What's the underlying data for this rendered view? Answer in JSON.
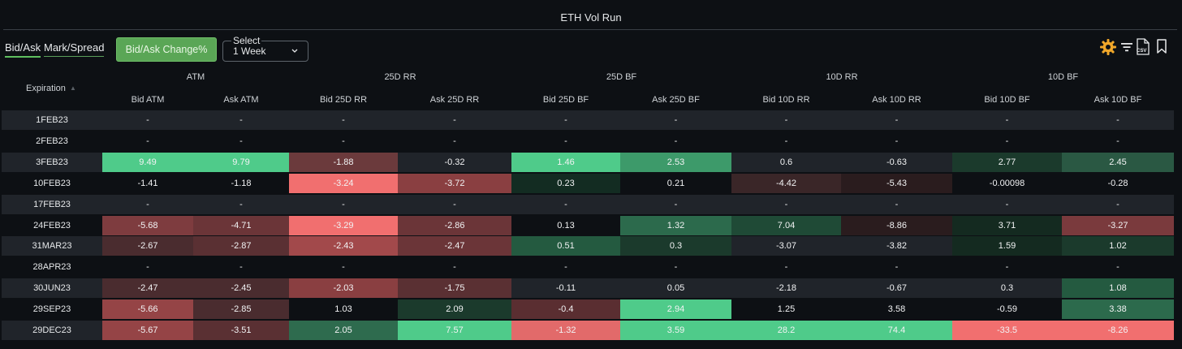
{
  "header": {
    "title": "ETH Vol Run"
  },
  "tabs": [
    {
      "label": "Bid/Ask",
      "active": true
    },
    {
      "label": "Mark/Spread",
      "active": false
    }
  ],
  "toolbar": {
    "change_button": "Bid/Ask Change%",
    "select": {
      "label": "Select",
      "value": "1 Week"
    },
    "icons": [
      "gear-icon",
      "filter-icon",
      "csv-export-icon",
      "bookmark-icon"
    ],
    "csv_label": "CSV"
  },
  "table": {
    "expiration_header": "Expiration",
    "groups": [
      "ATM",
      "25D RR",
      "25D BF",
      "10D RR",
      "10D BF"
    ],
    "columns": [
      "Bid ATM",
      "Ask ATM",
      "Bid 25D RR",
      "Ask 25D RR",
      "Bid 25D BF",
      "Ask 25D BF",
      "Bid 10D RR",
      "Ask 10D RR",
      "Bid 10D BF",
      "Ask 10D BF"
    ],
    "rows": [
      {
        "expiration": "1FEB23",
        "values": [
          "-",
          "-",
          "-",
          "-",
          "-",
          "-",
          "-",
          "-",
          "-",
          "-"
        ],
        "colors": [
          "",
          "",
          "",
          "",
          "",
          "",
          "",
          "",
          "",
          ""
        ]
      },
      {
        "expiration": "2FEB23",
        "values": [
          "-",
          "-",
          "-",
          "-",
          "-",
          "-",
          "-",
          "-",
          "-",
          "-"
        ],
        "colors": [
          "",
          "",
          "",
          "",
          "",
          "",
          "",
          "",
          "",
          ""
        ]
      },
      {
        "expiration": "3FEB23",
        "values": [
          "9.49",
          "9.79",
          "-1.88",
          "-0.32",
          "1.46",
          "2.53",
          "0.6",
          "-0.63",
          "2.77",
          "2.45"
        ],
        "colors": [
          "#4fcb8a",
          "#4fcb8a",
          "#6b3a3c",
          "",
          "#4fcb8a",
          "#3d9a6a",
          "",
          "",
          "#1b3a2c",
          "#2a5843"
        ]
      },
      {
        "expiration": "10FEB23",
        "values": [
          "-1.41",
          "-1.18",
          "-3.24",
          "-3.72",
          "0.23",
          "0.21",
          "-4.42",
          "-5.43",
          "-0.00098",
          "-0.28"
        ],
        "colors": [
          "",
          "",
          "#f16f6f",
          "#8a3f41",
          "#132c22",
          "",
          "#3a2628",
          "#2a1c1e",
          "",
          ""
        ]
      },
      {
        "expiration": "17FEB23",
        "values": [
          "-",
          "-",
          "-",
          "-",
          "-",
          "-",
          "-",
          "-",
          "-",
          "-"
        ],
        "colors": [
          "",
          "",
          "",
          "",
          "",
          "",
          "",
          "",
          "",
          ""
        ]
      },
      {
        "expiration": "24FEB23",
        "values": [
          "-5.68",
          "-4.71",
          "-3.29",
          "-2.86",
          "0.13",
          "1.32",
          "7.04",
          "-8.86",
          "3.71",
          "-3.27"
        ],
        "colors": [
          "#7e3c3f",
          "#6b3538",
          "#f16f6f",
          "#6b3538",
          "",
          "#2c6a4c",
          "#1f4a36",
          "#2a1c1e",
          "#142a20",
          "#7a3a3d"
        ]
      },
      {
        "expiration": "31MAR23",
        "values": [
          "-2.67",
          "-2.87",
          "-2.43",
          "-2.47",
          "0.51",
          "0.3",
          "-3.07",
          "-3.82",
          "1.59",
          "1.02"
        ],
        "colors": [
          "#4a2c2f",
          "#5a3033",
          "#a2494b",
          "#6b3538",
          "#245a40",
          "#1b3a2c",
          "",
          "",
          "#142a20",
          "#1b3a2c"
        ]
      },
      {
        "expiration": "28APR23",
        "values": [
          "-",
          "-",
          "-",
          "-",
          "-",
          "-",
          "-",
          "-",
          "-",
          "-"
        ],
        "colors": [
          "",
          "",
          "",
          "",
          "",
          "",
          "",
          "",
          "",
          ""
        ]
      },
      {
        "expiration": "30JUN23",
        "values": [
          "-2.47",
          "-2.45",
          "-2.03",
          "-1.75",
          "-0.11",
          "0.05",
          "-2.18",
          "-0.67",
          "0.3",
          "1.08"
        ],
        "colors": [
          "#4a2c2f",
          "#4a2c2f",
          "#8a3f41",
          "#5a3033",
          "",
          "",
          "",
          "",
          "",
          "#245a40"
        ]
      },
      {
        "expiration": "29SEP23",
        "values": [
          "-5.66",
          "-2.85",
          "1.03",
          "2.09",
          "-0.4",
          "2.94",
          "1.25",
          "3.58",
          "-0.59",
          "3.38"
        ],
        "colors": [
          "#954446",
          "#4a2c2f",
          "",
          "#1b3a2c",
          "#5a2e31",
          "#4fcb8a",
          "",
          "",
          "",
          "#2c6a4c"
        ]
      },
      {
        "expiration": "29DEC23",
        "values": [
          "-5.67",
          "-3.51",
          "2.05",
          "7.57",
          "-1.32",
          "3.59",
          "28.2",
          "74.4",
          "-33.5",
          "-8.26"
        ],
        "colors": [
          "#954446",
          "#5a3033",
          "#2e6b4e",
          "#4fcb8a",
          "#e26a6a",
          "#4fcb8a",
          "#4fcb8a",
          "#4fcb8a",
          "#f16f6f",
          "#f16f6f"
        ]
      }
    ]
  }
}
